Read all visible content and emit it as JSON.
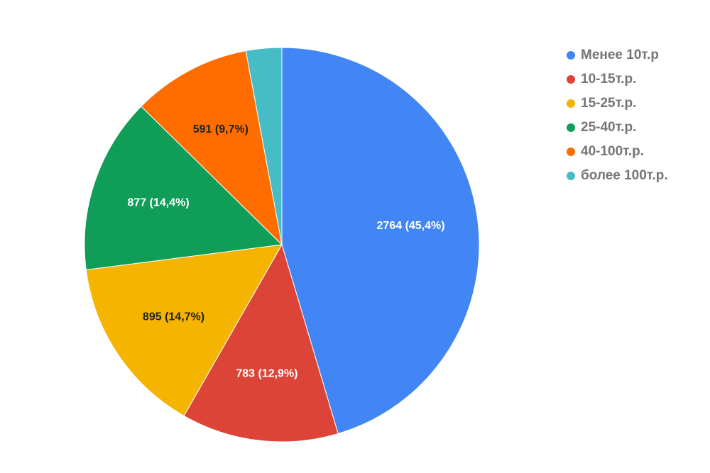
{
  "chart_data": {
    "type": "pie",
    "categories": [
      "Менее 10т.р",
      "10-15т.р.",
      "15-25т.р.",
      "25-40т.р.",
      "40-100т.р.",
      "более 100т.р."
    ],
    "values": [
      2764,
      783,
      895,
      877,
      591,
      178
    ],
    "value_labels": [
      "2764 (45,4%)",
      "783 (12,9%)",
      "895 (14,7%)",
      "877 (14,4%)",
      "591 (9,7%)",
      null
    ],
    "colors": [
      "#4285f4",
      "#db4437",
      "#f4b400",
      "#0f9d58",
      "#ff6d00",
      "#46bdc6"
    ],
    "value_label_colors": [
      "#ffffff",
      "#ffffff",
      "#222222",
      "#ffffff",
      "#222222",
      "#222222"
    ],
    "legend": "right"
  }
}
